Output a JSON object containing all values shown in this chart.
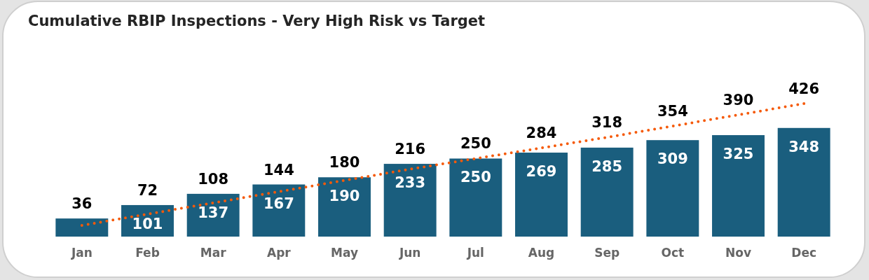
{
  "chart_data": {
    "type": "bar",
    "title": "Cumulative RBIP Inspections - Very High Risk vs Target",
    "categories": [
      "Jan",
      "Feb",
      "Mar",
      "Apr",
      "May",
      "Jun",
      "Jul",
      "Aug",
      "Sep",
      "Oct",
      "Nov",
      "Dec"
    ],
    "series": [
      {
        "color": "#1a5e7e",
        "values": [
          58,
          101,
          137,
          167,
          190,
          233,
          250,
          269,
          285,
          309,
          325,
          348
        ],
        "value_labels": [
          null,
          "101",
          "137",
          "167",
          "190",
          "233",
          "250",
          "269",
          "285",
          "309",
          "325",
          "348"
        ]
      },
      {
        "type": "line",
        "color": "#f55a0a",
        "line_style": "dotted",
        "marker": "none",
        "values": [
          36,
          72,
          108,
          144,
          180,
          216,
          250,
          284,
          318,
          354,
          390,
          426
        ],
        "value_labels": [
          "36",
          "72",
          "108",
          "144",
          "180",
          "216",
          "250",
          "284",
          "318",
          "354",
          "390",
          "426"
        ]
      }
    ],
    "tick_labels": "x"
  }
}
